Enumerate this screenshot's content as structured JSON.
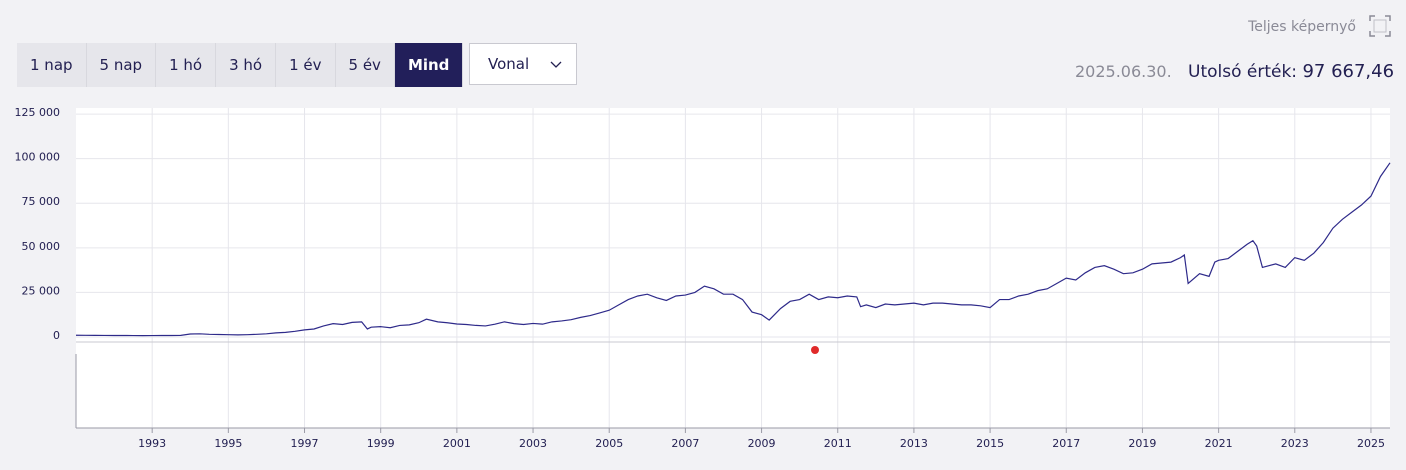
{
  "ui": {
    "fullscreen": "Teljes képernyő",
    "ranges": [
      "1 nap",
      "5 nap",
      "1 hó",
      "3 hó",
      "1 év",
      "5 év",
      "Mind"
    ],
    "active_range": "Mind",
    "chart_style": "Vonal",
    "date": "2025.06.30.",
    "last_label": "Utolsó érték:",
    "last_value": "97 667,46"
  },
  "chart_data": {
    "type": "line",
    "color": "#2e2a8a",
    "grid": true,
    "xlim": [
      1991.0,
      2025.5
    ],
    "xticks": [
      1993,
      1995,
      1997,
      1999,
      2001,
      2003,
      2005,
      2007,
      2009,
      2011,
      2013,
      2015,
      2017,
      2019,
      2021,
      2023,
      2025
    ],
    "ylim": [
      -2800,
      128400
    ],
    "yticks": [
      0,
      {
        "value": 25000,
        "label": "25 000"
      },
      {
        "value": 50000,
        "label": "50 000"
      },
      {
        "value": 75000,
        "label": "75 000"
      },
      {
        "value": 100000,
        "label": "100 000"
      },
      {
        "value": 125000,
        "label": "125 000"
      }
    ],
    "x": [
      1991.0,
      1991.25,
      1991.5,
      1991.75,
      1992.0,
      1992.25,
      1992.5,
      1992.75,
      1993.0,
      1993.25,
      1993.5,
      1993.75,
      1994.0,
      1994.25,
      1994.5,
      1994.75,
      1995.0,
      1995.25,
      1995.5,
      1995.75,
      1996.0,
      1996.25,
      1996.5,
      1996.75,
      1997.0,
      1997.25,
      1997.5,
      1997.75,
      1998.0,
      1998.25,
      1998.5,
      1998.65,
      1998.75,
      1999.0,
      1999.25,
      1999.5,
      1999.75,
      2000.0,
      2000.2,
      2000.5,
      2000.75,
      2001.0,
      2001.25,
      2001.5,
      2001.75,
      2002.0,
      2002.25,
      2002.5,
      2002.75,
      2003.0,
      2003.25,
      2003.5,
      2003.75,
      2004.0,
      2004.25,
      2004.5,
      2004.75,
      2005.0,
      2005.25,
      2005.5,
      2005.75,
      2006.0,
      2006.25,
      2006.5,
      2006.75,
      2007.0,
      2007.25,
      2007.5,
      2007.75,
      2008.0,
      2008.25,
      2008.5,
      2008.75,
      2009.0,
      2009.2,
      2009.5,
      2009.75,
      2010.0,
      2010.25,
      2010.5,
      2010.75,
      2011.0,
      2011.25,
      2011.5,
      2011.6,
      2011.75,
      2012.0,
      2012.25,
      2012.5,
      2012.75,
      2013.0,
      2013.25,
      2013.5,
      2013.75,
      2014.0,
      2014.25,
      2014.5,
      2014.75,
      2015.0,
      2015.25,
      2015.5,
      2015.75,
      2016.0,
      2016.25,
      2016.5,
      2016.75,
      2017.0,
      2017.25,
      2017.5,
      2017.75,
      2018.0,
      2018.25,
      2018.5,
      2018.75,
      2019.0,
      2019.25,
      2019.5,
      2019.75,
      2020.0,
      2020.1,
      2020.2,
      2020.5,
      2020.75,
      2020.9,
      2021.0,
      2021.25,
      2021.5,
      2021.75,
      2021.9,
      2022.0,
      2022.15,
      2022.5,
      2022.75,
      2023.0,
      2023.25,
      2023.5,
      2023.75,
      2024.0,
      2024.25,
      2024.5,
      2024.75,
      2025.0,
      2025.25,
      2025.5
    ],
    "values": [
      1000,
      950,
      900,
      880,
      850,
      830,
      820,
      780,
      800,
      830,
      850,
      900,
      1700,
      1800,
      1500,
      1400,
      1300,
      1200,
      1300,
      1500,
      1800,
      2300,
      2600,
      3200,
      4000,
      4500,
      6200,
      7500,
      7000,
      8200,
      8500,
      4500,
      5500,
      5800,
      5200,
      6500,
      6800,
      8000,
      10000,
      8500,
      8000,
      7300,
      7000,
      6500,
      6200,
      7200,
      8500,
      7500,
      7000,
      7600,
      7200,
      8500,
      9000,
      9700,
      11000,
      12000,
      13500,
      15000,
      18000,
      21000,
      23000,
      24000,
      22000,
      20500,
      23000,
      23500,
      25000,
      28500,
      27000,
      24000,
      24000,
      21000,
      14000,
      12500,
      9500,
      16000,
      20000,
      21000,
      24000,
      21000,
      22500,
      22000,
      23000,
      22500,
      17000,
      18000,
      16500,
      18500,
      18000,
      18500,
      19000,
      18000,
      19000,
      19000,
      18500,
      18000,
      18000,
      17500,
      16500,
      21000,
      21000,
      23000,
      24000,
      26000,
      27000,
      30000,
      33000,
      32000,
      36000,
      39000,
      40000,
      38000,
      35500,
      36000,
      38000,
      41000,
      41500,
      42000,
      44500,
      46000,
      30000,
      35500,
      34000,
      42000,
      43000,
      44000,
      48000,
      52000,
      54000,
      51000,
      39000,
      41000,
      39000,
      44500,
      43000,
      47000,
      53000,
      61000,
      66000,
      70000,
      74000,
      79000,
      90000,
      97667.46
    ]
  }
}
